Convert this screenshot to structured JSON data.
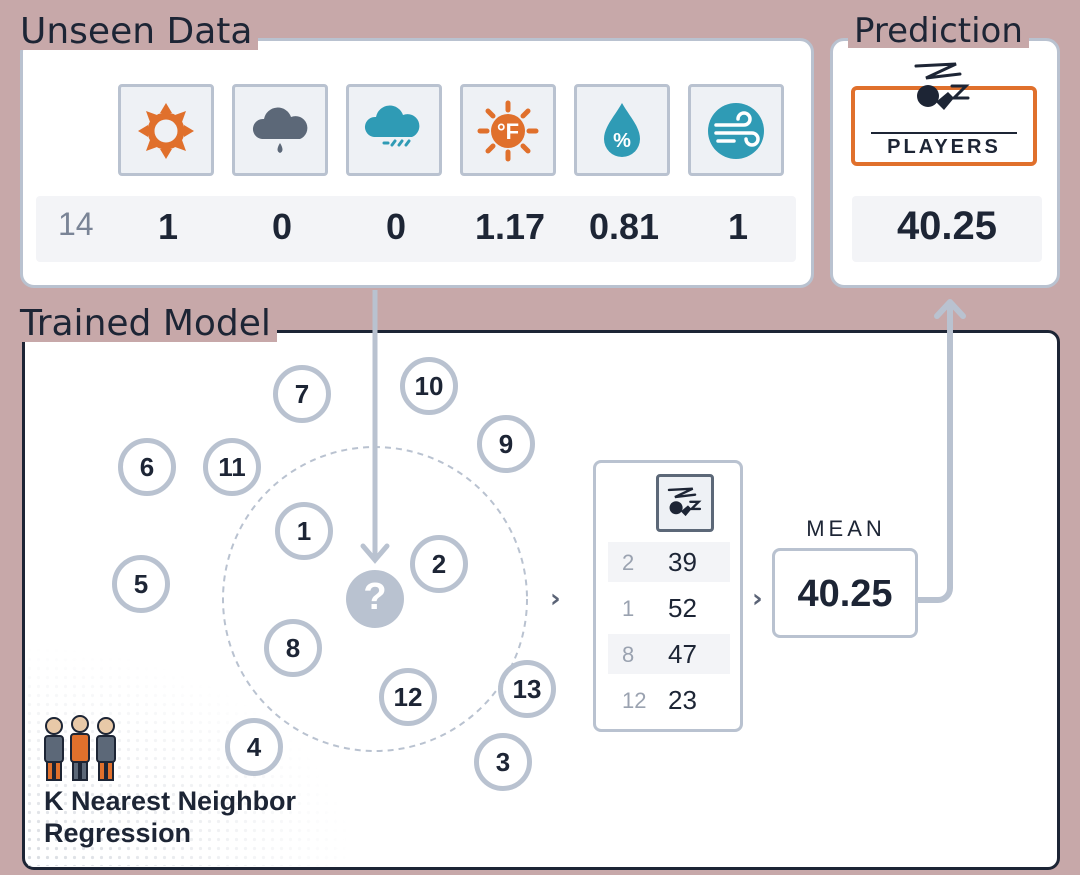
{
  "unseen": {
    "title": "Unseen Data",
    "features": [
      {
        "icon": "sun-icon"
      },
      {
        "icon": "cloud-rain-icon"
      },
      {
        "icon": "cloud-heavy-rain-icon"
      },
      {
        "icon": "temperature-sun-icon"
      },
      {
        "icon": "humidity-drop-icon"
      },
      {
        "icon": "wind-icon"
      }
    ],
    "row_id": "14",
    "values": [
      "1",
      "0",
      "0",
      "1.17",
      "0.81",
      "1"
    ]
  },
  "prediction": {
    "title": "Prediction",
    "target_label": "PLAYERS",
    "value": "40.25"
  },
  "model": {
    "title": "Trained Model",
    "query_symbol": "?",
    "nodes": [
      "1",
      "2",
      "3",
      "4",
      "5",
      "6",
      "7",
      "8",
      "9",
      "10",
      "11",
      "12",
      "13"
    ],
    "neighbors": [
      {
        "id": "2",
        "value": "39"
      },
      {
        "id": "1",
        "value": "52"
      },
      {
        "id": "8",
        "value": "47"
      },
      {
        "id": "12",
        "value": "23"
      }
    ],
    "mean_label": "MEAN",
    "mean_value": "40.25",
    "caption_line1": "K Nearest Neighbor",
    "caption_line2": "Regression"
  },
  "colors": {
    "background": "#c7a8a9",
    "orange": "#e0702c",
    "slate": "#5c6878",
    "teal": "#2f9bb5",
    "border": "#b9c2d0"
  }
}
